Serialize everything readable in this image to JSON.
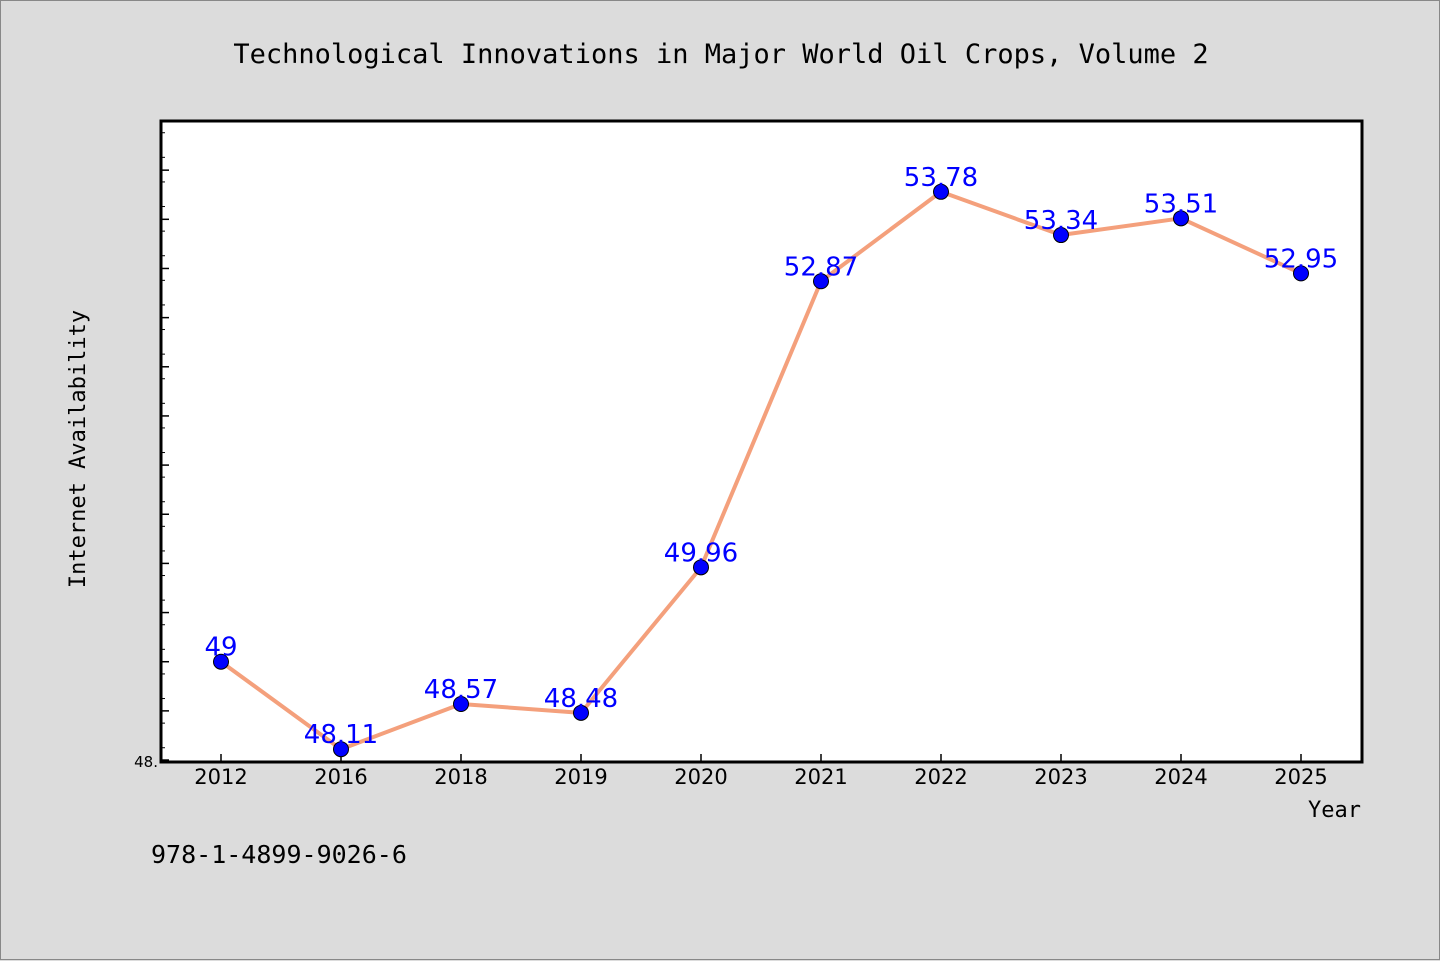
{
  "chart_data": {
    "type": "line",
    "title": "Technological Innovations in Major World Oil Crops, Volume 2",
    "xlabel": "Year",
    "ylabel": "Internet Availability",
    "categories": [
      "2012",
      "2016",
      "2018",
      "2019",
      "2020",
      "2021",
      "2022",
      "2023",
      "2024",
      "2025"
    ],
    "series": [
      {
        "values": [
          49,
          48.11,
          48.57,
          48.48,
          49.96,
          52.87,
          53.78,
          53.34,
          53.51,
          52.95
        ],
        "labels": [
          "49",
          "48.11",
          "48.57",
          "48.48",
          "49.96",
          "52.87",
          "53.78",
          "53.34",
          "53.51",
          "52.95"
        ]
      }
    ],
    "ylim": [
      47.98,
      54.5
    ],
    "y_tick_label": "48.",
    "line_color": "#f4a07c",
    "marker_color": "#0000ff",
    "label_color": "#0000ff",
    "grid": false
  },
  "footer": {
    "isbn": "978-1-4899-9026-6"
  }
}
